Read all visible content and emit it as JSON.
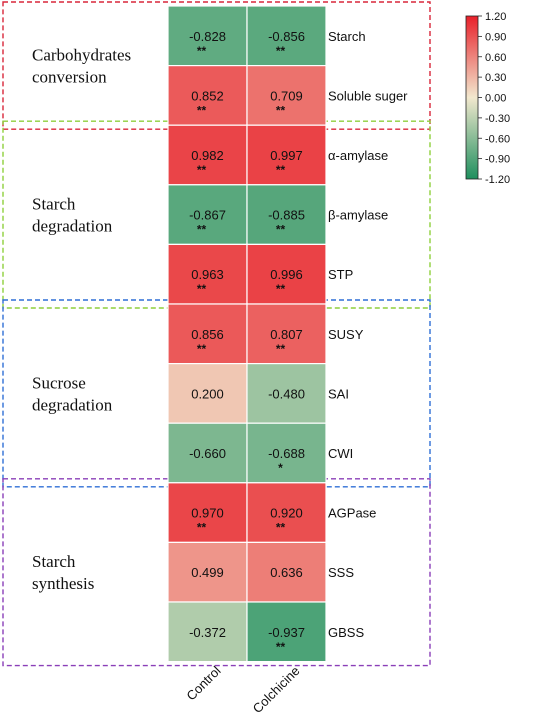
{
  "chart_data": {
    "type": "heatmap",
    "title": "",
    "xlabel": "",
    "ylabel": "",
    "columns": [
      "Control",
      "Colchicine"
    ],
    "rows": [
      "Starch",
      "Soluble suger",
      "α-amylase",
      "β-amylase",
      "STP",
      "SUSY",
      "SAI",
      "CWI",
      "AGPase",
      "SSS",
      "GBSS"
    ],
    "values": [
      [
        -0.828,
        -0.856
      ],
      [
        0.852,
        0.709
      ],
      [
        0.982,
        0.997
      ],
      [
        -0.867,
        -0.885
      ],
      [
        0.963,
        0.996
      ],
      [
        0.856,
        0.807
      ],
      [
        0.2,
        -0.48
      ],
      [
        -0.66,
        -0.688
      ],
      [
        0.97,
        0.92
      ],
      [
        0.499,
        0.636
      ],
      [
        -0.372,
        -0.937
      ]
    ],
    "value_labels": [
      [
        "-0.828",
        "-0.856"
      ],
      [
        "0.852",
        "0.709"
      ],
      [
        "0.982",
        "0.997"
      ],
      [
        "-0.867",
        "-0.885"
      ],
      [
        "0.963",
        "0.996"
      ],
      [
        "0.856",
        "0.807"
      ],
      [
        "0.200",
        "-0.480"
      ],
      [
        "-0.660",
        "-0.688"
      ],
      [
        "0.970",
        "0.920"
      ],
      [
        "0.499",
        "0.636"
      ],
      [
        "-0.372",
        "-0.937"
      ]
    ],
    "significance": [
      [
        "**",
        "**"
      ],
      [
        "**",
        "**"
      ],
      [
        "**",
        "**"
      ],
      [
        "**",
        "**"
      ],
      [
        "**",
        "**"
      ],
      [
        "**",
        "**"
      ],
      [
        "",
        ""
      ],
      [
        "",
        "*"
      ],
      [
        "**",
        "**"
      ],
      [
        "",
        ""
      ],
      [
        "",
        "**"
      ]
    ],
    "colorbar": {
      "vmin": -1.2,
      "vmax": 1.2,
      "ticks": [
        1.2,
        0.9,
        0.6,
        0.3,
        0.0,
        -0.3,
        -0.6,
        -0.9,
        -1.2
      ],
      "tick_labels": [
        "1.20",
        "0.90",
        "0.60",
        "0.30",
        "0.00",
        "-0.30",
        "-0.60",
        "-0.90",
        "-1.20"
      ],
      "color_stops": [
        "#1e8f5e",
        "#f2e8ce",
        "#e8202a"
      ],
      "placement": "top-right"
    },
    "groups": [
      {
        "label": [
          "Carbohydrates",
          "conversion"
        ],
        "rows": [
          0,
          1
        ],
        "color": "#d9263a"
      },
      {
        "label": [
          "Starch",
          "degradation"
        ],
        "rows": [
          2,
          4
        ],
        "color": "#8ecf3c"
      },
      {
        "label": [
          "Sucrose",
          "degradation"
        ],
        "rows": [
          5,
          7
        ],
        "color": "#2f6fd6"
      },
      {
        "label": [
          "Starch",
          "synthesis"
        ],
        "rows": [
          8,
          10
        ],
        "color": "#8a3fb8"
      }
    ]
  }
}
